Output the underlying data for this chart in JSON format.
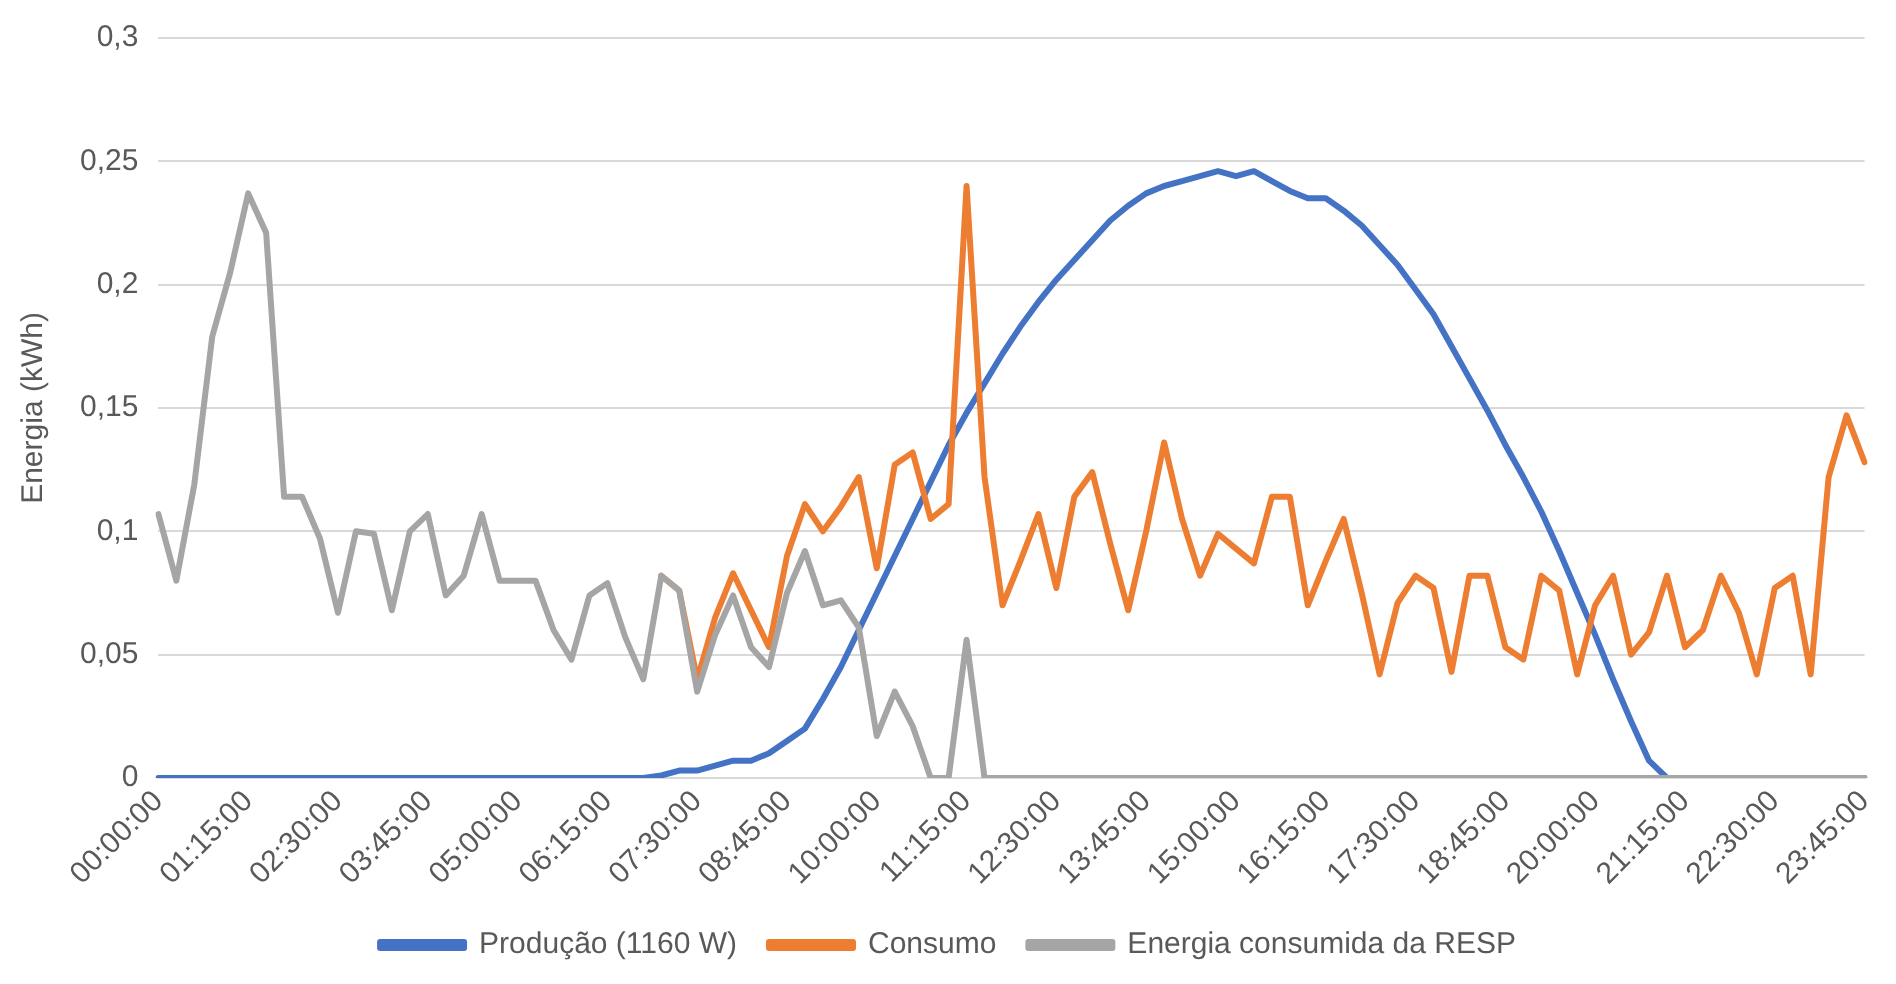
{
  "chart_data": {
    "type": "line",
    "ylabel": "Energia (kWh)",
    "categories": [
      "00:00:00",
      null,
      null,
      null,
      null,
      "01:15:00",
      null,
      null,
      null,
      null,
      "02:30:00",
      null,
      null,
      null,
      null,
      "03:45:00",
      null,
      null,
      null,
      null,
      "05:00:00",
      null,
      null,
      null,
      null,
      "06:15:00",
      null,
      null,
      null,
      null,
      "07:30:00",
      null,
      null,
      null,
      null,
      "08:45:00",
      null,
      null,
      null,
      null,
      "10:00:00",
      null,
      null,
      null,
      null,
      "11:15:00",
      null,
      null,
      null,
      null,
      "12:30:00",
      null,
      null,
      null,
      null,
      "13:45:00",
      null,
      null,
      null,
      null,
      "15:00:00",
      null,
      null,
      null,
      null,
      "16:15:00",
      null,
      null,
      null,
      null,
      "17:30:00",
      null,
      null,
      null,
      null,
      "18:45:00",
      null,
      null,
      null,
      null,
      "20:00:00",
      null,
      null,
      null,
      null,
      "21:15:00",
      null,
      null,
      null,
      null,
      "22:30:00",
      null,
      null,
      null,
      null,
      "23:45:00"
    ],
    "series": [
      {
        "name": "Produção (1160 W)",
        "color": "#4472c4",
        "values": [
          0,
          0,
          0,
          0,
          0,
          0,
          0,
          0,
          0,
          0,
          0,
          0,
          0,
          0,
          0,
          0,
          0,
          0,
          0,
          0,
          0,
          0,
          0,
          0,
          0,
          0,
          0,
          0,
          0.001,
          0.003,
          0.003,
          0.005,
          0.007,
          0.007,
          0.01,
          0.015,
          0.02,
          0.032,
          0.045,
          0.06,
          0.075,
          0.09,
          0.105,
          0.12,
          0.135,
          0.148,
          0.16,
          0.172,
          0.183,
          0.193,
          0.202,
          0.21,
          0.218,
          0.226,
          0.232,
          0.237,
          0.24,
          0.242,
          0.244,
          0.246,
          0.244,
          0.246,
          0.242,
          0.238,
          0.235,
          0.235,
          0.23,
          0.224,
          0.216,
          0.208,
          0.198,
          0.188,
          0.175,
          0.162,
          0.149,
          0.135,
          0.122,
          0.108,
          0.092,
          0.075,
          0.058,
          0.04,
          0.023,
          0.007,
          0,
          0,
          0,
          0,
          0,
          0,
          0,
          0,
          0,
          0,
          0,
          0
        ]
      },
      {
        "name": "Consumo",
        "color": "#ed7d31",
        "values": [
          null,
          null,
          null,
          null,
          null,
          null,
          null,
          null,
          null,
          null,
          null,
          null,
          null,
          null,
          null,
          null,
          null,
          null,
          null,
          null,
          null,
          null,
          null,
          null,
          null,
          null,
          null,
          null,
          0.082,
          0.076,
          0.04,
          0.065,
          0.083,
          0.068,
          0.053,
          0.09,
          0.111,
          0.1,
          0.11,
          0.122,
          0.085,
          0.127,
          0.132,
          0.105,
          0.111,
          0.24,
          0.122,
          0.07,
          0.088,
          0.107,
          0.077,
          0.114,
          0.124,
          0.095,
          0.068,
          0.1,
          0.136,
          0.105,
          0.082,
          0.099,
          0.093,
          0.087,
          0.114,
          0.114,
          0.07,
          0.088,
          0.105,
          0.075,
          0.042,
          0.071,
          0.082,
          0.077,
          0.043,
          0.082,
          0.082,
          0.053,
          0.048,
          0.082,
          0.076,
          0.042,
          0.07,
          0.082,
          0.05,
          0.059,
          0.082,
          0.053,
          0.06,
          0.082,
          0.067,
          0.042,
          0.077,
          0.082,
          0.042,
          0.122,
          0.147,
          0.128
        ]
      },
      {
        "name": "Energia consumida da RESP",
        "color": "#a5a5a5",
        "values": [
          0.107,
          0.08,
          0.119,
          0.179,
          0.205,
          0.237,
          0.221,
          0.114,
          0.114,
          0.097,
          0.067,
          0.1,
          0.099,
          0.068,
          0.1,
          0.107,
          0.074,
          0.082,
          0.107,
          0.08,
          0.08,
          0.08,
          0.06,
          0.048,
          0.074,
          0.079,
          0.057,
          0.04,
          0.082,
          0.076,
          0.035,
          0.058,
          0.074,
          0.053,
          0.045,
          0.075,
          0.092,
          0.07,
          0.072,
          0.061,
          0.017,
          0.035,
          0.021,
          0,
          0,
          0.056,
          0,
          0,
          0,
          0,
          0,
          0,
          0,
          0,
          0,
          0,
          0,
          0,
          0,
          0,
          0,
          0,
          0,
          0,
          0,
          0,
          0,
          0,
          0,
          0,
          0,
          0,
          0,
          0,
          0,
          0,
          0,
          0,
          0,
          0,
          0,
          0,
          0,
          0,
          0,
          0,
          0,
          0,
          0,
          0,
          0,
          0,
          0,
          0,
          0,
          0
        ]
      }
    ],
    "ylim": [
      0,
      0.3
    ],
    "yticks": [
      0,
      {
        "value": 0.05,
        "label": "0,05"
      },
      {
        "value": 0.1,
        "label": "0,1"
      },
      {
        "value": 0.15,
        "label": "0,15"
      },
      {
        "value": 0.2,
        "label": "0,2"
      },
      {
        "value": 0.25,
        "label": "0,25"
      },
      {
        "value": 0.3,
        "label": "0,3"
      }
    ],
    "grid": "y",
    "legend": "bottom",
    "marker": "none",
    "line_style": "solid"
  }
}
